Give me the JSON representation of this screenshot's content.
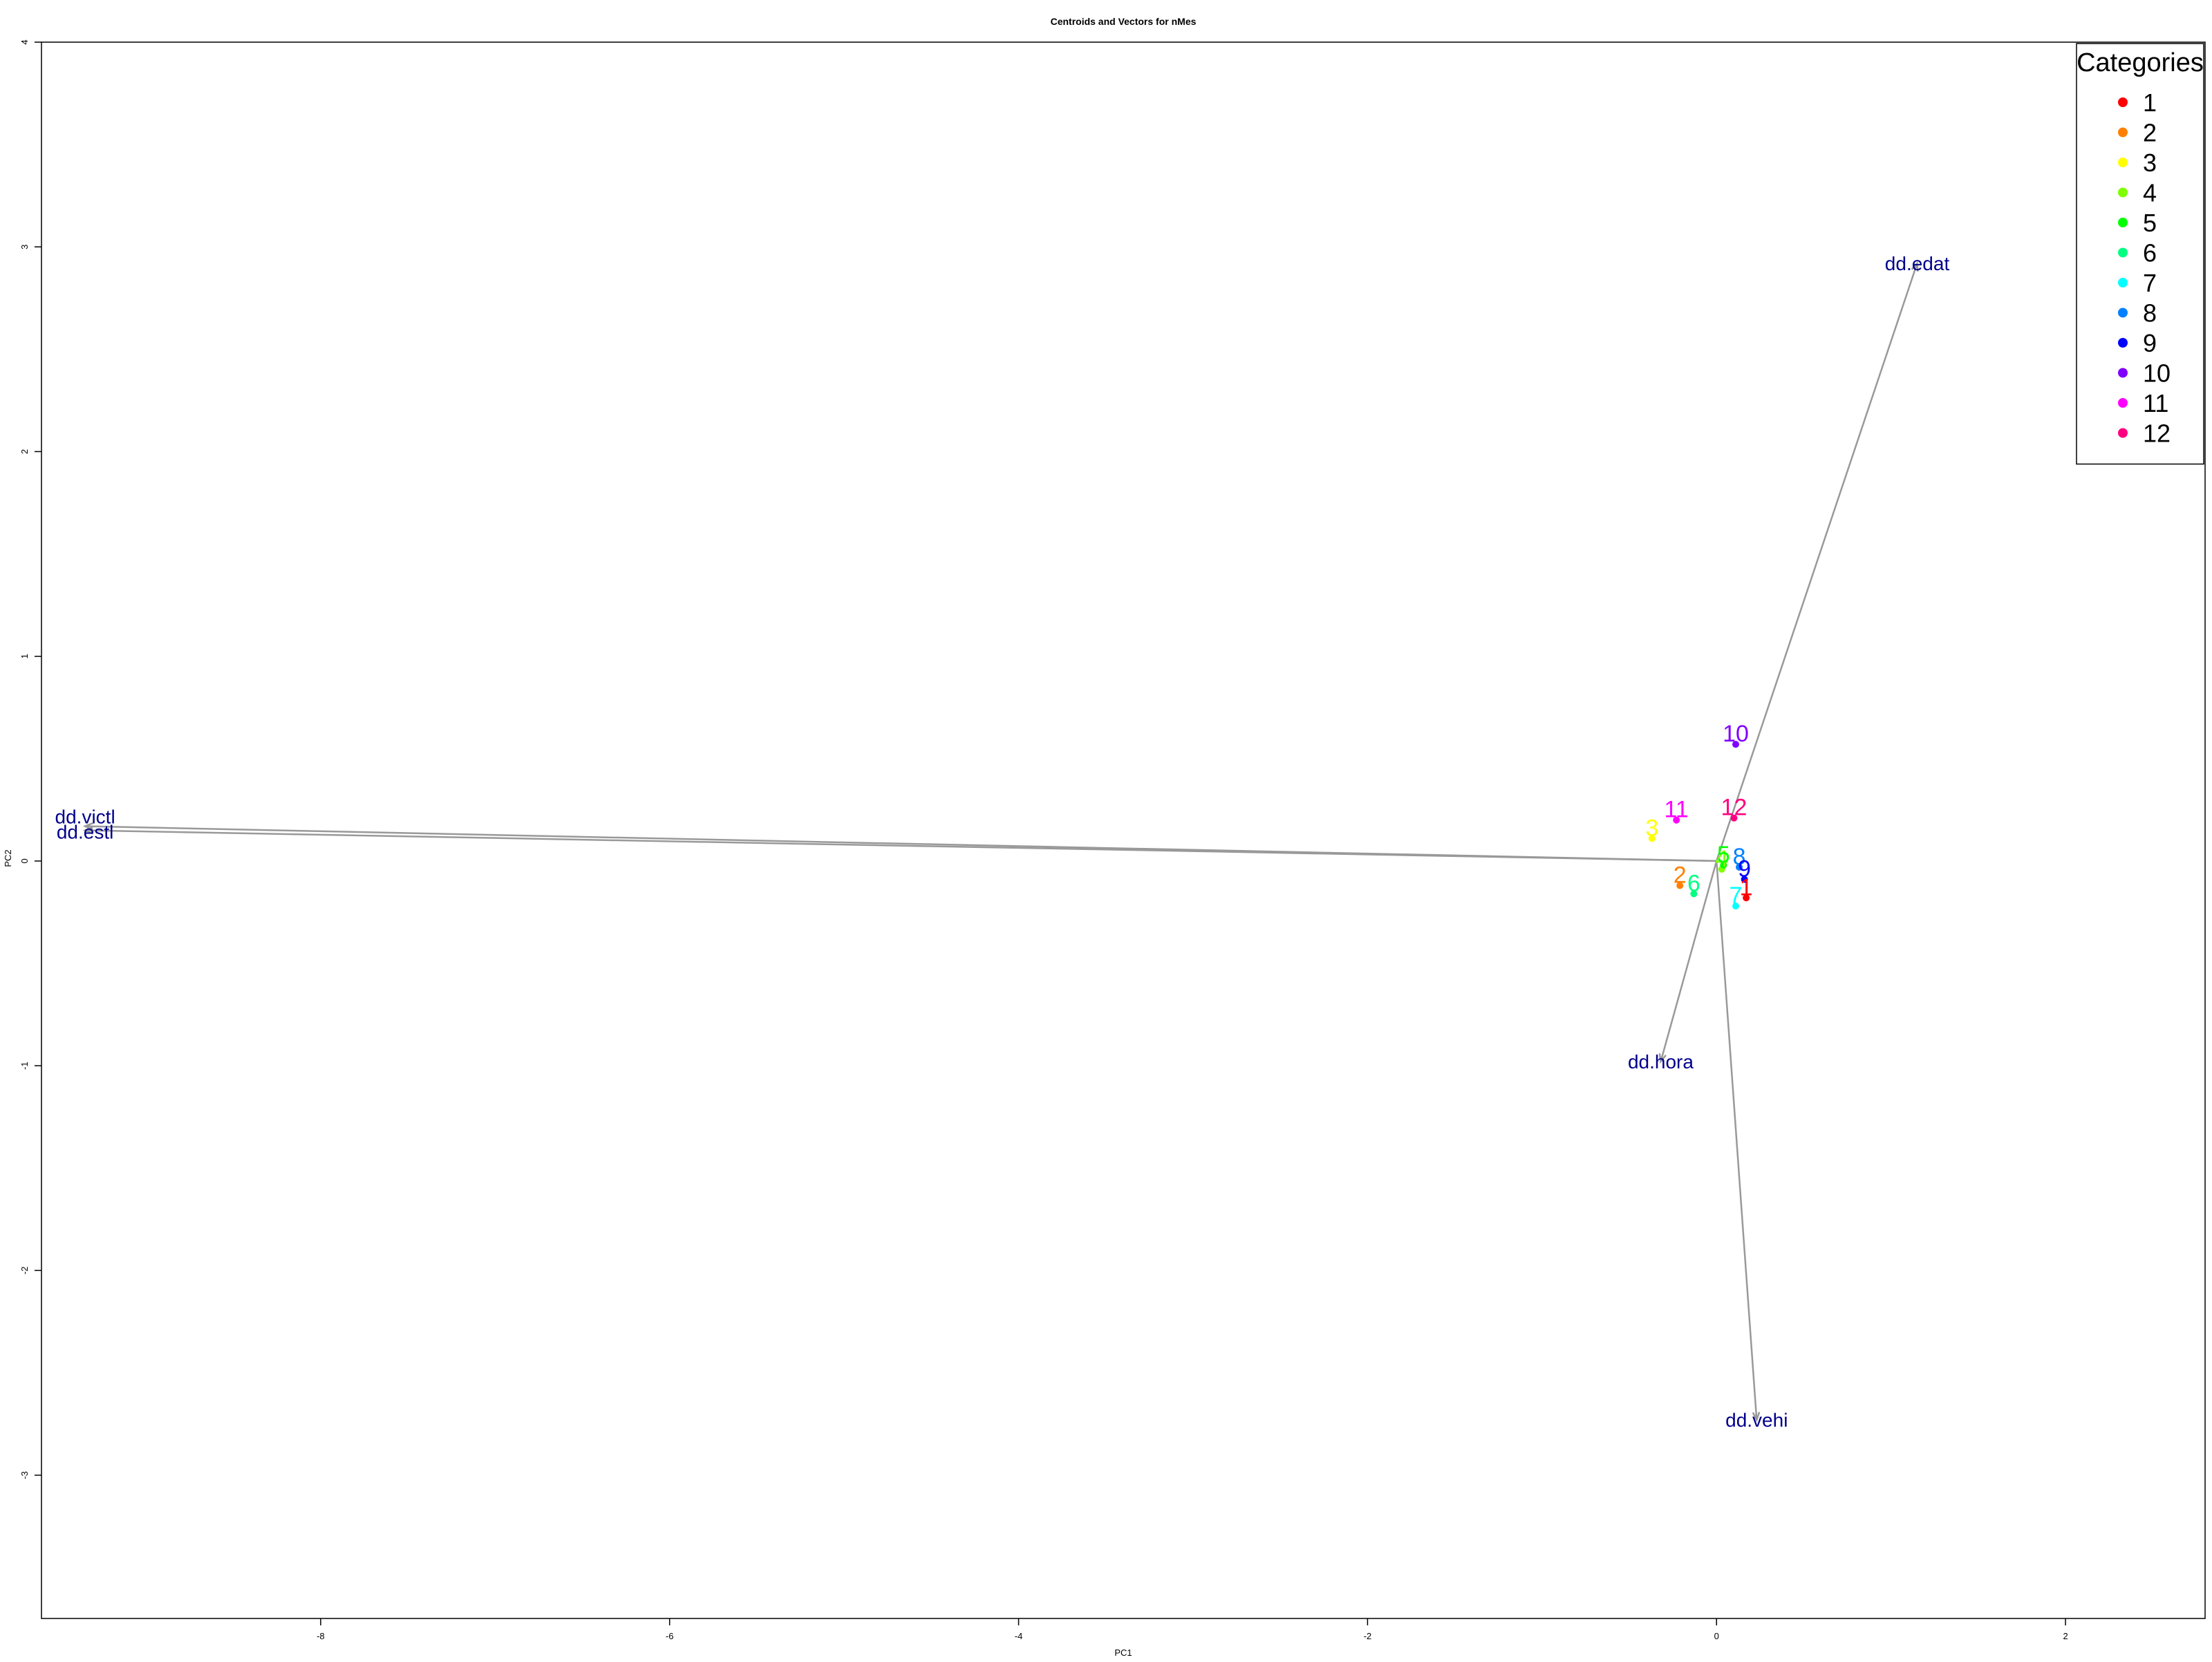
{
  "chart_data": {
    "type": "scatter",
    "title": "Centroids and Vectors for  nMes",
    "xlabel": "PC1",
    "ylabel": "PC2",
    "xlim": [
      -9.6,
      2.8
    ],
    "ylim": [
      -3.7,
      4.0
    ],
    "xticks": [
      -8,
      -6,
      -4,
      -2,
      0,
      2
    ],
    "yticks": [
      -3,
      -2,
      -1,
      0,
      1,
      2,
      3,
      4
    ],
    "grid": false,
    "legend_position": "top-right",
    "legend_title": "Categories",
    "vector_color": "#00008B",
    "arrow_color": "#999999",
    "vectors": [
      {
        "name": "dd.victl",
        "x": -9.35,
        "y": 0.17
      },
      {
        "name": "dd.estl",
        "x": -9.35,
        "y": 0.15
      },
      {
        "name": "dd.edat",
        "x": 1.15,
        "y": 2.92
      },
      {
        "name": "dd.hora",
        "x": -0.32,
        "y": -0.98
      },
      {
        "name": "dd.vehi",
        "x": 0.23,
        "y": -2.73
      }
    ],
    "categories": [
      {
        "name": "1",
        "color": "#FF0000",
        "x": 0.17,
        "y": -0.18
      },
      {
        "name": "2",
        "color": "#FF8000",
        "x": -0.21,
        "y": -0.12
      },
      {
        "name": "3",
        "color": "#FFFF00",
        "x": -0.37,
        "y": 0.11
      },
      {
        "name": "4",
        "color": "#80FF00",
        "x": 0.03,
        "y": -0.04
      },
      {
        "name": "5",
        "color": "#00FF00",
        "x": 0.04,
        "y": -0.02
      },
      {
        "name": "6",
        "color": "#00FF80",
        "x": -0.13,
        "y": -0.16
      },
      {
        "name": "7",
        "color": "#00FFFF",
        "x": 0.11,
        "y": -0.22
      },
      {
        "name": "8",
        "color": "#0080FF",
        "x": 0.13,
        "y": -0.03
      },
      {
        "name": "9",
        "color": "#0000FF",
        "x": 0.16,
        "y": -0.09
      },
      {
        "name": "10",
        "color": "#8000FF",
        "x": 0.11,
        "y": 0.57
      },
      {
        "name": "11",
        "color": "#FF00FF",
        "x": -0.23,
        "y": 0.2
      },
      {
        "name": "12",
        "color": "#FF0080",
        "x": 0.1,
        "y": 0.21
      }
    ]
  }
}
